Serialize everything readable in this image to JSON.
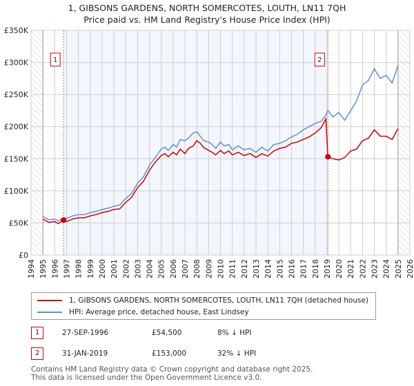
{
  "chart_data": {
    "type": "line",
    "title": "1, GIBSONS GARDENS, NORTH SOMERCOTES, LOUTH, LN11 7QH",
    "subtitle": "Price paid vs. HM Land Registry's House Price Index (HPI)",
    "xlim": [
      1994,
      2026
    ],
    "ylim": [
      0,
      350000
    ],
    "x_ticks": [
      "1994",
      "1995",
      "1996",
      "1997",
      "1998",
      "1999",
      "2000",
      "2001",
      "2002",
      "2003",
      "2004",
      "2005",
      "2006",
      "2007",
      "2008",
      "2009",
      "2010",
      "2011",
      "2012",
      "2013",
      "2014",
      "2015",
      "2016",
      "2017",
      "2018",
      "2019",
      "2020",
      "2021",
      "2022",
      "2023",
      "2024",
      "2025",
      "2026"
    ],
    "y_ticks": [
      {
        "v": 0,
        "l": "£0"
      },
      {
        "v": 50000,
        "l": "£50K"
      },
      {
        "v": 100000,
        "l": "£100K"
      },
      {
        "v": 150000,
        "l": "£150K"
      },
      {
        "v": 200000,
        "l": "£200K"
      },
      {
        "v": 250000,
        "l": "£250K"
      },
      {
        "v": 300000,
        "l": "£300K"
      },
      {
        "v": 350000,
        "l": "£350K"
      }
    ],
    "series": [
      {
        "name": "1, GIBSONS GARDENS, NORTH SOMERCOTES, LOUTH, LN11 7QH (detached house)",
        "color": "#cc0000",
        "x": [
          1995,
          1995.5,
          1996,
          1996.3,
          1996.75,
          1997,
          1997.5,
          1998,
          1998.5,
          1999,
          1999.5,
          2000,
          2000.5,
          2001,
          2001.5,
          2002,
          2002.5,
          2003,
          2003.5,
          2004,
          2004.5,
          2005,
          2005.3,
          2005.6,
          2006,
          2006.3,
          2006.6,
          2007,
          2007.3,
          2007.7,
          2008,
          2008.3,
          2008.6,
          2009,
          2009.3,
          2009.6,
          2010,
          2010.3,
          2010.7,
          2011,
          2011.5,
          2012,
          2012.5,
          2013,
          2013.5,
          2014,
          2014.5,
          2015,
          2015.5,
          2016,
          2016.5,
          2017,
          2017.5,
          2018,
          2018.5,
          2018.9,
          2019.08,
          2019.5,
          2020,
          2020.5,
          2021,
          2021.5,
          2022,
          2022.5,
          2023,
          2023.5,
          2024,
          2024.5,
          2025
        ],
        "y": [
          56000,
          51000,
          52000,
          49000,
          54500,
          52000,
          56000,
          58000,
          58000,
          61000,
          63000,
          66000,
          68000,
          71000,
          72000,
          82000,
          90000,
          105000,
          115000,
          132000,
          145000,
          155000,
          158000,
          153000,
          160000,
          156000,
          165000,
          158000,
          166000,
          170000,
          178000,
          174000,
          167000,
          163000,
          160000,
          156000,
          163000,
          158000,
          162000,
          156000,
          160000,
          155000,
          158000,
          152000,
          158000,
          154000,
          162000,
          166000,
          168000,
          174000,
          176000,
          180000,
          184000,
          190000,
          198000,
          212000,
          153000,
          150000,
          148000,
          152000,
          162000,
          165000,
          178000,
          182000,
          195000,
          185000,
          185000,
          180000,
          197000
        ]
      },
      {
        "name": "HPI: Average price, detached house, East Lindsey",
        "color": "#5b8fd6",
        "x": [
          1995,
          1995.5,
          1996,
          1996.3,
          1996.75,
          1997,
          1997.5,
          1998,
          1998.5,
          1999,
          1999.5,
          2000,
          2000.5,
          2001,
          2001.5,
          2002,
          2002.5,
          2003,
          2003.5,
          2004,
          2004.5,
          2005,
          2005.3,
          2005.6,
          2006,
          2006.3,
          2006.6,
          2007,
          2007.3,
          2007.7,
          2008,
          2008.3,
          2008.6,
          2009,
          2009.3,
          2009.6,
          2010,
          2010.3,
          2010.7,
          2011,
          2011.5,
          2012,
          2012.5,
          2013,
          2013.5,
          2014,
          2014.5,
          2015,
          2015.5,
          2016,
          2016.5,
          2017,
          2017.5,
          2018,
          2018.5,
          2018.9,
          2019.08,
          2019.5,
          2020,
          2020.5,
          2021,
          2021.5,
          2022,
          2022.5,
          2023,
          2023.5,
          2024,
          2024.5,
          2025
        ],
        "y": [
          60000,
          55000,
          56000,
          53000,
          58000,
          57000,
          61000,
          63000,
          63000,
          66000,
          68000,
          71000,
          73000,
          76000,
          78000,
          88000,
          96000,
          112000,
          122000,
          140000,
          152000,
          165000,
          168000,
          163000,
          172000,
          168000,
          180000,
          178000,
          182000,
          190000,
          192000,
          185000,
          178000,
          176000,
          172000,
          166000,
          176000,
          170000,
          172000,
          164000,
          170000,
          164000,
          166000,
          160000,
          168000,
          162000,
          172000,
          174000,
          178000,
          184000,
          188000,
          195000,
          200000,
          205000,
          208000,
          218000,
          225000,
          215000,
          222000,
          210000,
          225000,
          240000,
          265000,
          272000,
          290000,
          275000,
          280000,
          268000,
          295000
        ]
      }
    ],
    "sales": [
      {
        "label": "1",
        "x": 1996.75,
        "y": 54500
      },
      {
        "label": "2",
        "x": 2019.08,
        "y": 153000
      }
    ]
  },
  "table": [
    {
      "num": "1",
      "date": "27-SEP-1996",
      "price": "£54,500",
      "hpi": "8% ↓ HPI"
    },
    {
      "num": "2",
      "date": "31-JAN-2019",
      "price": "£153,000",
      "hpi": "32% ↓ HPI"
    }
  ],
  "footer": [
    "Contains HM Land Registry data © Crown copyright and database right 2025.",
    "This data is licensed under the Open Government Licence v3.0."
  ]
}
